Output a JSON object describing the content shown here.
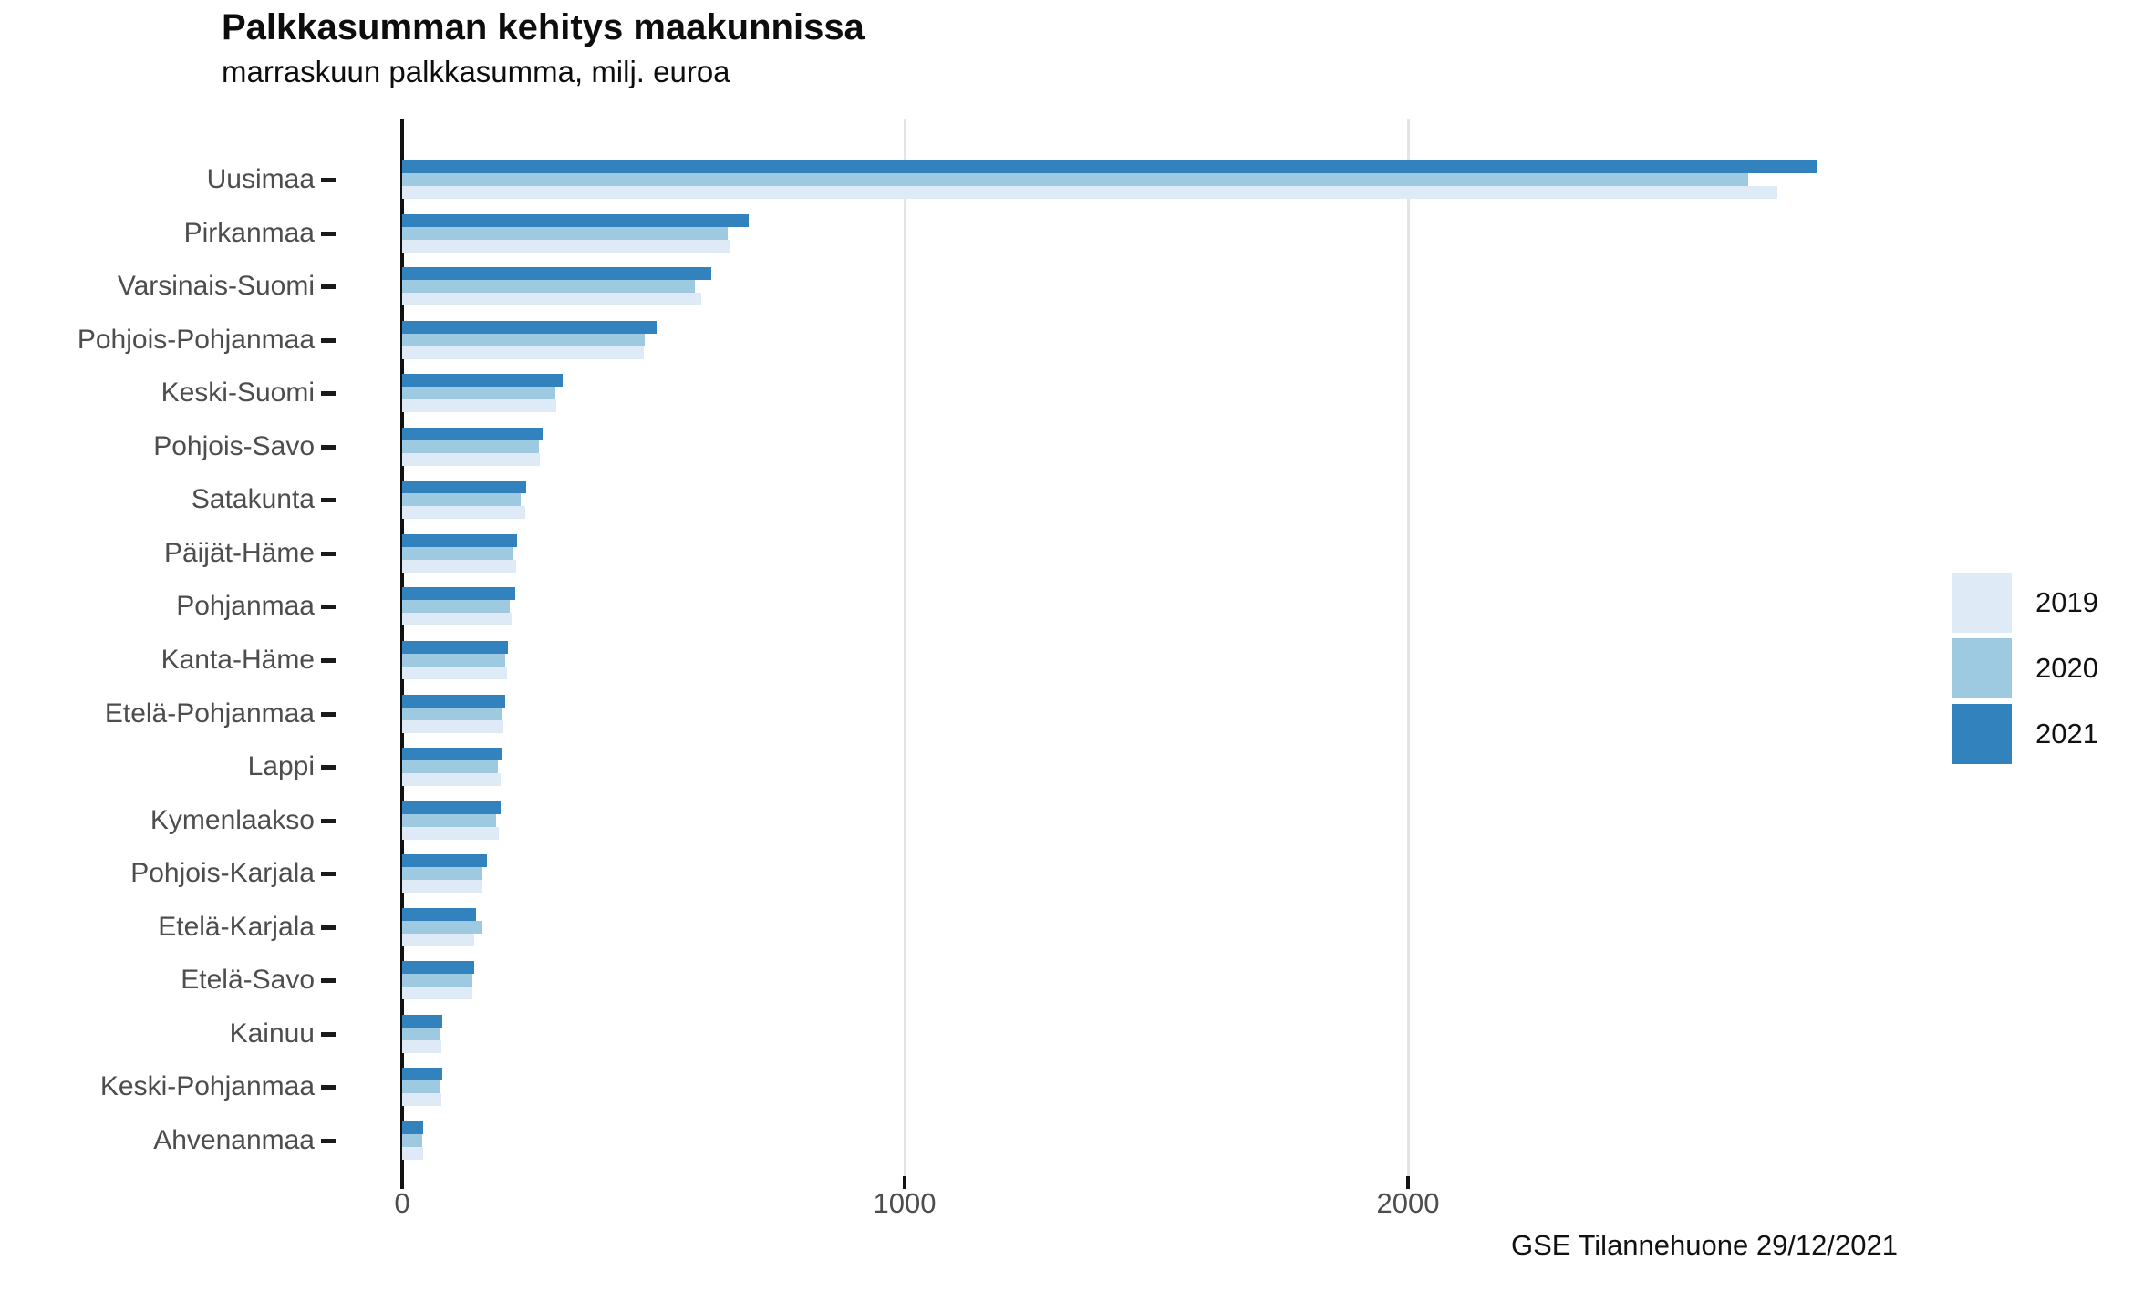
{
  "header": {
    "title": "Palkkasumman kehitys maakunnissa",
    "subtitle": "marraskuun palkkasumma, milj. euroa"
  },
  "footer": {
    "caption": "GSE Tilannehuone 29/12/2021"
  },
  "legend": {
    "position": "right",
    "items": [
      {
        "label": "2019",
        "color": "#DEEBF7"
      },
      {
        "label": "2020",
        "color": "#9ECAE1"
      },
      {
        "label": "2021",
        "color": "#3182BD"
      }
    ]
  },
  "chart_data": {
    "type": "bar",
    "orientation": "horizontal",
    "title": "Palkkasumman kehitys maakunnissa",
    "subtitle": "marraskuun palkkasumma, milj. euroa",
    "xlabel": "",
    "ylabel": "",
    "categories": [
      "Uusimaa",
      "Pirkanmaa",
      "Varsinais-Suomi",
      "Pohjois-Pohjanmaa",
      "Keski-Suomi",
      "Pohjois-Savo",
      "Satakunta",
      "Päijät-Häme",
      "Pohjanmaa",
      "Kanta-Häme",
      "Etelä-Pohjanmaa",
      "Lappi",
      "Kymenlaakso",
      "Pohjois-Karjala",
      "Etelä-Karjala",
      "Etelä-Savo",
      "Kainuu",
      "Keski-Pohjanmaa",
      "Ahvenanmaa"
    ],
    "series": [
      {
        "name": "2019",
        "color": "#DEEBF7",
        "values": [
          2735,
          653,
          595,
          480,
          307,
          274,
          245,
          226,
          218,
          209,
          202,
          196,
          193,
          159,
          144,
          140,
          78,
          78,
          42
        ]
      },
      {
        "name": "2020",
        "color": "#9ECAE1",
        "values": [
          2676,
          647,
          582,
          483,
          305,
          272,
          236,
          221,
          214,
          205,
          198,
          190,
          187,
          157,
          159,
          139,
          76,
          77,
          40
        ]
      },
      {
        "name": "2021",
        "color": "#3182BD",
        "values": [
          2812,
          689,
          615,
          506,
          320,
          280,
          247,
          229,
          224,
          211,
          205,
          200,
          195,
          168,
          147,
          144,
          79,
          79,
          42
        ]
      }
    ],
    "bar_order_top_to_bottom": [
      "2021",
      "2020",
      "2019"
    ],
    "x_axis": {
      "ticks": [
        0,
        1000,
        2000
      ],
      "min": 0,
      "max": 2974
    },
    "grid": {
      "vertical_gridlines": [
        1000,
        2000
      ],
      "color": "#E4E4E4",
      "horizontal": false
    },
    "legend_position": "right"
  }
}
